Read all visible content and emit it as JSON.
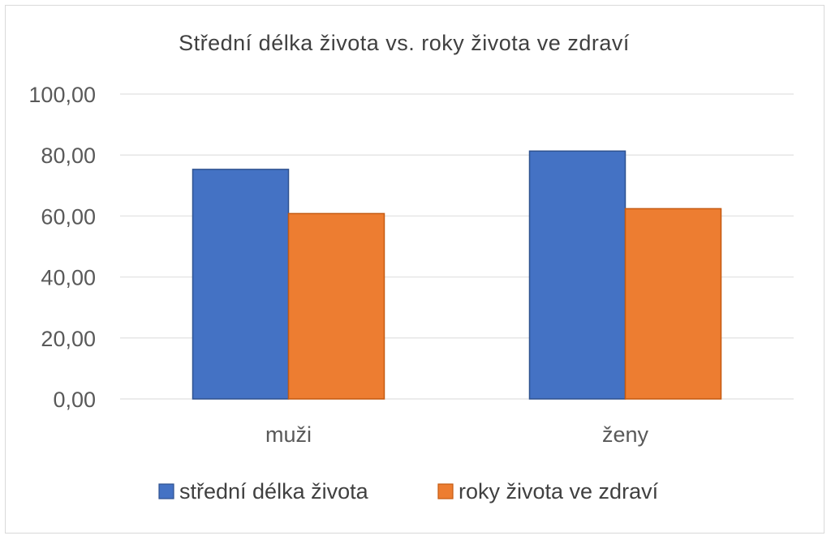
{
  "chart_data": {
    "type": "bar",
    "title": "Střední délka života vs. roky života ve zdraví",
    "categories": [
      "muži",
      "ženy"
    ],
    "series": [
      {
        "name": "střední délka života",
        "values": [
          75.3,
          81.3
        ],
        "color": "#4472C4"
      },
      {
        "name": "roky života ve zdraví",
        "values": [
          60.8,
          62.4
        ],
        "color": "#ED7D31"
      }
    ],
    "y_ticks": [
      "0,00",
      "20,00",
      "40,00",
      "60,00",
      "80,00",
      "100,00"
    ],
    "ylim": [
      0,
      100
    ],
    "grid": true,
    "legend_position": "bottom"
  }
}
